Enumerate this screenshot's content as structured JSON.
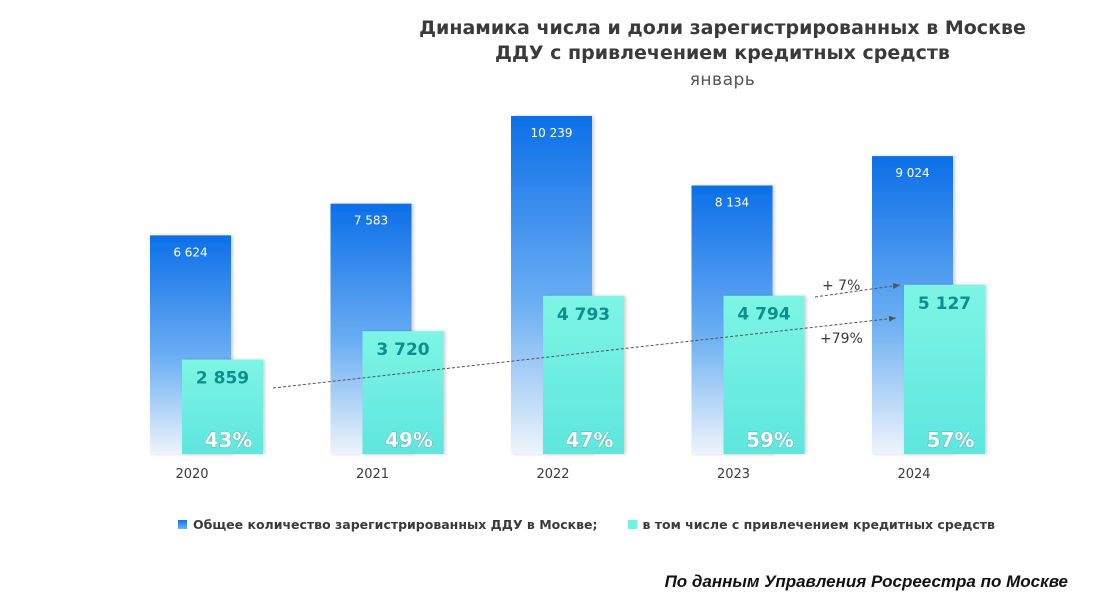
{
  "chart_data": {
    "type": "bar",
    "title_line1": "Динамика числа и доли зарегистрированных в Москве",
    "title_line2": "ДДУ с привлечением кредитных средств",
    "subtitle": "январь",
    "categories": [
      "2020",
      "2021",
      "2022",
      "2023",
      "2024"
    ],
    "series": [
      {
        "name": "Общее количество зарегистрированных ДДУ в Москве;",
        "values": [
          6624,
          7583,
          10239,
          8134,
          9024
        ],
        "labels": [
          "6 624",
          "7 583",
          "10 239",
          "8 134",
          "9 024"
        ],
        "color": "#0f73ea"
      },
      {
        "name": "в том числе с привлечением кредитных средств",
        "values": [
          2859,
          3720,
          4793,
          4794,
          5127
        ],
        "labels": [
          "2 859",
          "3 720",
          "4 793",
          "4 794",
          "5 127"
        ],
        "color": "#6ff2e2"
      }
    ],
    "share_labels": [
      "43%",
      "49%",
      "47%",
      "59%",
      "57%"
    ],
    "annotations": [
      {
        "text": "+ 7%",
        "from": "2023",
        "to": "2024",
        "series": "total_credit"
      },
      {
        "text": "+79%",
        "from": "2020",
        "to": "2024",
        "series": "credit"
      }
    ],
    "ylim": [
      0,
      10239
    ],
    "grid": false,
    "legend": "bottom"
  },
  "source": "По данным Управления Росреестра по Москве"
}
